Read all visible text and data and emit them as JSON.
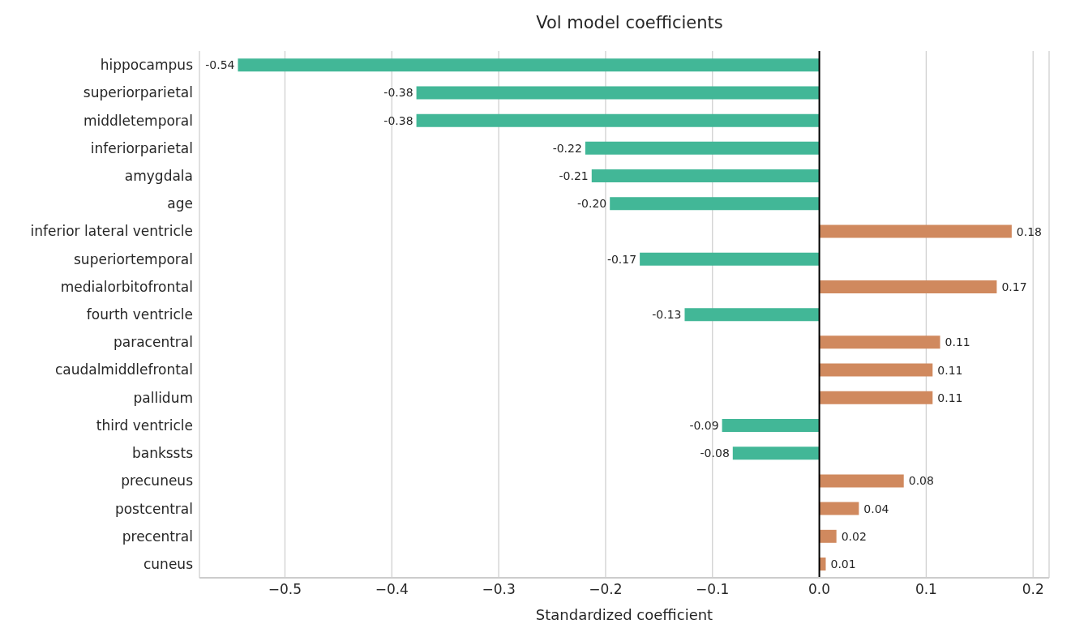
{
  "chart_data": {
    "type": "bar",
    "orientation": "horizontal",
    "title": "Vol model coefficients",
    "xlabel": "Standardized coefficient",
    "categories": [
      "hippocampus",
      "superiorparietal",
      "middletemporal",
      "inferiorparietal",
      "amygdala",
      "age",
      "inferior lateral ventricle",
      "superiortemporal",
      "medialorbitofrontal",
      "fourth ventricle",
      "paracentral",
      "caudalmiddlefrontal",
      "pallidum",
      "third ventricle",
      "bankssts",
      "precuneus",
      "postcentral",
      "precentral",
      "cuneus"
    ],
    "values": [
      -0.544,
      -0.377,
      -0.377,
      -0.219,
      -0.213,
      -0.196,
      0.18,
      -0.168,
      0.166,
      -0.126,
      0.113,
      0.106,
      0.106,
      -0.091,
      -0.081,
      0.079,
      0.037,
      0.016,
      0.006
    ],
    "value_labels": [
      "-0.54",
      "-0.38",
      "-0.38",
      "-0.22",
      "-0.21",
      "-0.20",
      "0.18",
      "-0.17",
      "0.17",
      "-0.13",
      "0.11",
      "0.11",
      "0.11",
      "-0.09",
      "-0.08",
      "0.08",
      "0.04",
      "0.02",
      "0.01"
    ],
    "colors": [
      "#42b797",
      "#42b797",
      "#42b797",
      "#42b797",
      "#42b797",
      "#42b797",
      "#d0895e",
      "#42b797",
      "#d0895e",
      "#42b797",
      "#d0895e",
      "#d0895e",
      "#d0895e",
      "#42b797",
      "#42b797",
      "#d0895e",
      "#d0895e",
      "#d0895e",
      "#d0895e"
    ],
    "xlim": [
      -0.58,
      0.215
    ],
    "xticks": [
      {
        "value": -0.5,
        "label": "−0.5"
      },
      {
        "value": -0.4,
        "label": "−0.4"
      },
      {
        "value": -0.3,
        "label": "−0.3"
      },
      {
        "value": -0.2,
        "label": "−0.2"
      },
      {
        "value": -0.1,
        "label": "−0.1"
      },
      {
        "value": 0,
        "label": "0.0"
      },
      {
        "value": 0.1,
        "label": "0.1"
      },
      {
        "value": 0.2,
        "label": "0.2"
      }
    ],
    "ref_lines": [
      {
        "axis": "x",
        "value": 0,
        "color": "#000000"
      }
    ],
    "grid": "x"
  }
}
